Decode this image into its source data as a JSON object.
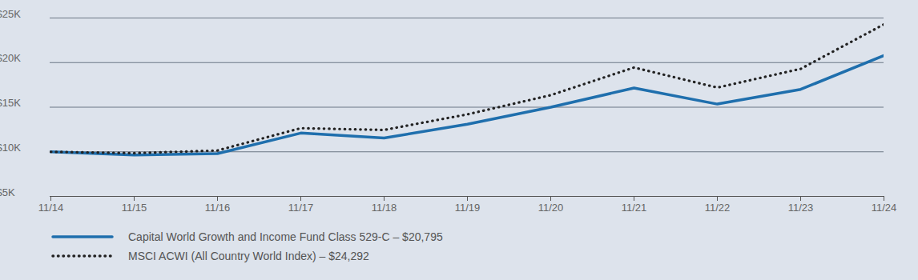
{
  "chart_data": {
    "type": "line",
    "x": [
      "11/14",
      "11/15",
      "11/16",
      "11/17",
      "11/18",
      "11/19",
      "11/20",
      "11/21",
      "11/22",
      "11/23",
      "11/24"
    ],
    "series": [
      {
        "name": "Capital World Growth and Income Fund Class 529-C – $20,795",
        "color": "#1f6fad",
        "line_style": "solid",
        "values": [
          10000,
          9650,
          9800,
          12100,
          11550,
          13100,
          15000,
          17150,
          15350,
          17000,
          20795
        ]
      },
      {
        "name": "MSCI ACWI (All Country World Index) – $24,292",
        "color": "#222222",
        "line_style": "dotted",
        "values": [
          10000,
          9850,
          10150,
          12650,
          12450,
          14200,
          16350,
          19450,
          17200,
          19300,
          24292
        ]
      }
    ],
    "ylim": [
      5000,
      25000
    ],
    "yticks": [
      {
        "value": 5000,
        "label": "$5K"
      },
      {
        "value": 10000,
        "label": "$10K"
      },
      {
        "value": 15000,
        "label": "$15K"
      },
      {
        "value": 20000,
        "label": "$20K"
      },
      {
        "value": 25000,
        "label": "$25K"
      }
    ],
    "grid": true,
    "legend": "bottom-left"
  }
}
